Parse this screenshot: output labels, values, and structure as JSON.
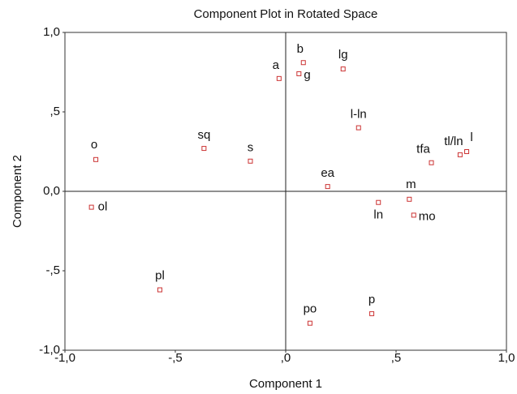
{
  "chart_data": {
    "type": "scatter",
    "title": "Component Plot in Rotated Space",
    "x_label": "Component 1",
    "y_label": "Component 2",
    "point_labels": [
      "o",
      "ol",
      "sq",
      "s",
      "pl",
      "a",
      "b",
      "g",
      "lg",
      "l-ln",
      "ea",
      "ln",
      "m",
      "mo",
      "tfa",
      "tl/ln",
      "l",
      "po",
      "p"
    ],
    "x": [
      -0.86,
      -0.88,
      -0.37,
      -0.16,
      -0.57,
      -0.03,
      0.08,
      0.06,
      0.26,
      0.33,
      0.19,
      0.42,
      0.56,
      0.58,
      0.66,
      0.79,
      0.82,
      0.11,
      0.39
    ],
    "values": [
      0.2,
      -0.1,
      0.27,
      0.19,
      -0.62,
      0.71,
      0.81,
      0.74,
      0.77,
      0.4,
      0.03,
      -0.07,
      -0.05,
      -0.15,
      0.18,
      0.23,
      0.25,
      -0.83,
      -0.77
    ],
    "color": "#cc3333",
    "xlim": [
      -1,
      1
    ],
    "ylim": [
      -1,
      1
    ],
    "xticks": [
      {
        "value": -1,
        "label": "-1,0"
      },
      {
        "value": -0.5,
        "label": "-,5"
      },
      {
        "value": 0,
        "label": ",0"
      },
      {
        "value": 0.5,
        "label": ",5"
      },
      {
        "value": 1,
        "label": "1,0"
      }
    ],
    "yticks": [
      {
        "value": -1,
        "label": "-1,0"
      },
      {
        "value": -0.5,
        "label": "-,5"
      },
      {
        "value": 0,
        "label": "0,0"
      },
      {
        "value": 0.5,
        "label": ",5"
      },
      {
        "value": 1,
        "label": "1,0"
      }
    ]
  }
}
